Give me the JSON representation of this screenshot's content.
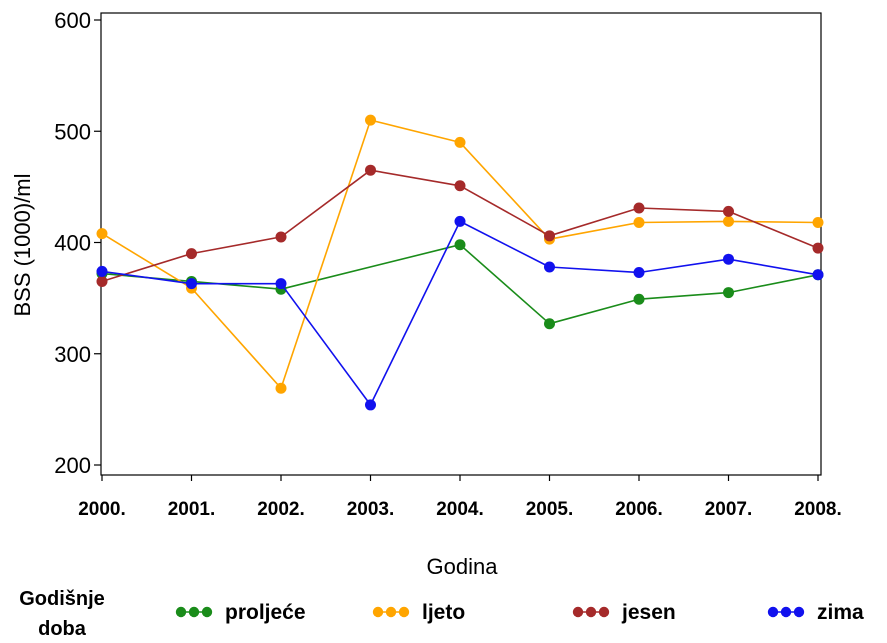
{
  "chart_data": {
    "type": "line",
    "title": "",
    "xlabel": "Godina",
    "ylabel": "BSS (1000)/ml",
    "categories": [
      "2000.",
      "2001.",
      "2002.",
      "2003.",
      "2004.",
      "2005.",
      "2006.",
      "2007.",
      "2008."
    ],
    "ylim": [
      200,
      600
    ],
    "yticks": [
      200,
      300,
      400,
      500,
      600
    ],
    "grid": false,
    "legend": {
      "title_lines": [
        "Godišnje",
        "doba"
      ],
      "placement": "bottom"
    },
    "series": [
      {
        "name": "proljeće",
        "color": "#1a8c1a",
        "values": [
          372,
          365,
          358,
          null,
          398,
          327,
          349,
          355,
          371
        ]
      },
      {
        "name": "ljeto",
        "color": "#ffa500",
        "values": [
          408,
          359,
          269,
          510,
          490,
          403,
          418,
          419,
          418
        ]
      },
      {
        "name": "jesen",
        "color": "#a52a2a",
        "values": [
          365,
          390,
          405,
          465,
          451,
          406,
          431,
          428,
          395
        ]
      },
      {
        "name": "zima",
        "color": "#1111ee",
        "values": [
          374,
          363,
          363,
          254,
          419,
          378,
          373,
          385,
          371
        ]
      }
    ]
  }
}
